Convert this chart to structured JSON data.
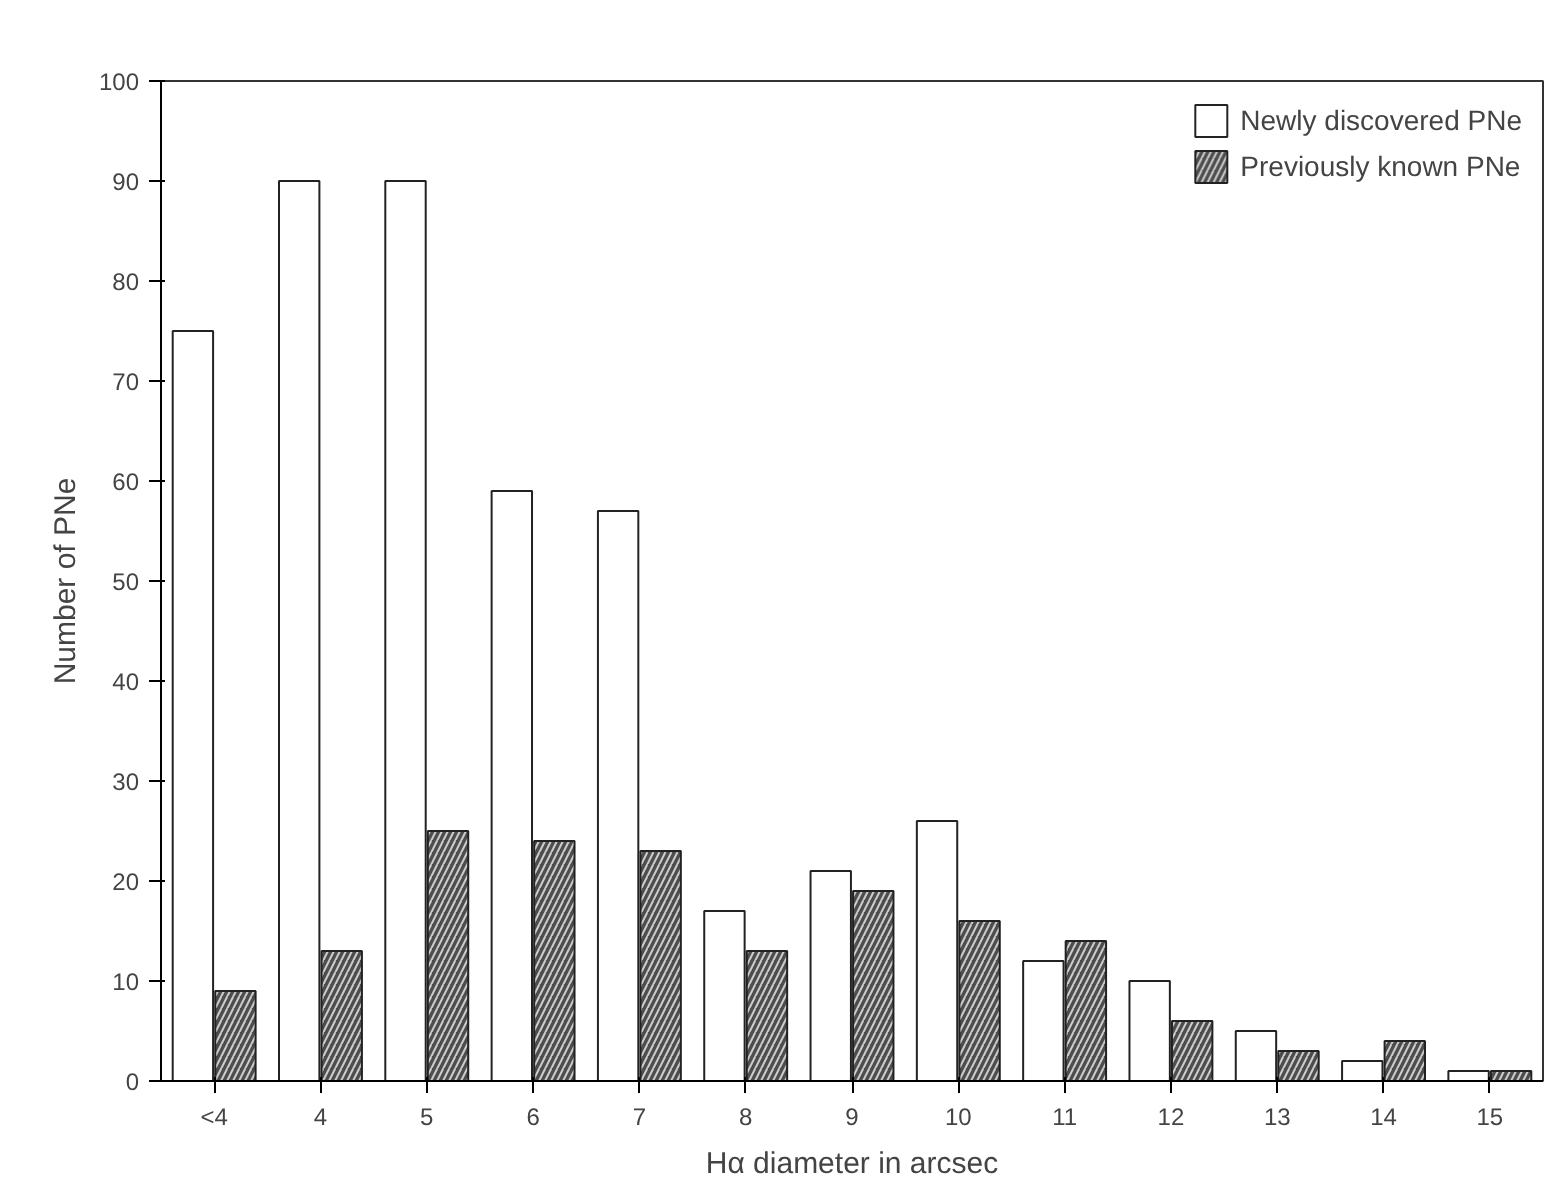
{
  "chart_data": {
    "type": "bar",
    "xlabel": "Hα diameter in arcsec",
    "ylabel": "Number of PNe",
    "categories": [
      "<4",
      "4",
      "5",
      "6",
      "7",
      "8",
      "9",
      "10",
      "11",
      "12",
      "13",
      "14",
      "15"
    ],
    "series": [
      {
        "name": "Newly discovered PNe",
        "color": "#ffffff",
        "values": [
          75,
          90,
          90,
          59,
          57,
          17,
          21,
          26,
          12,
          10,
          5,
          2,
          1
        ]
      },
      {
        "name": "Previously known PNe",
        "color": "#4d4d4d",
        "values": [
          9,
          13,
          25,
          24,
          23,
          13,
          19,
          16,
          14,
          6,
          3,
          4,
          1
        ]
      }
    ],
    "ylim": [
      0,
      100
    ],
    "yticks": [
      0,
      10,
      20,
      30,
      40,
      50,
      60,
      70,
      80,
      90,
      100
    ],
    "grid": false,
    "legend": "top right"
  }
}
